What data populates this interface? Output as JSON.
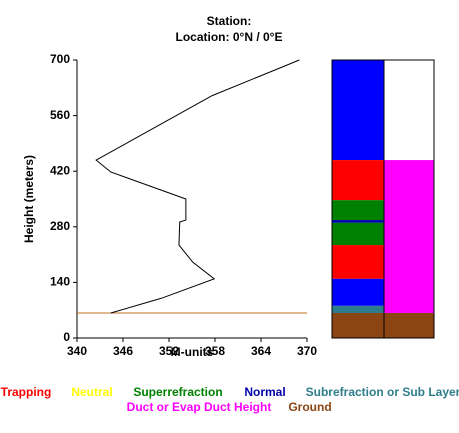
{
  "chart_data": {
    "type": "line",
    "title": "Station:",
    "subtitle": "Location:   0°N /   0°E",
    "xlabel": "M-units",
    "ylabel": "Height (meters)",
    "x": [
      369,
      357.6,
      342.5,
      344.4,
      354.2,
      354.2,
      353.4,
      353.3,
      355.1,
      357.9,
      351,
      344.4
    ],
    "y": [
      700,
      610,
      448,
      418,
      350,
      297,
      292,
      234,
      191,
      149,
      100,
      63
    ],
    "color": "#000000",
    "xlim": [
      340,
      370
    ],
    "xticks": [
      340,
      346,
      352,
      358,
      364,
      370
    ],
    "ylim": [
      0,
      700
    ],
    "yticks": [
      0,
      140,
      280,
      420,
      560,
      700
    ],
    "reference_line": {
      "value": 63,
      "color": "#c07020"
    },
    "layers": {
      "left": [
        {
          "from": 448,
          "to": 700,
          "color": "#0000ff"
        },
        {
          "from": 347,
          "to": 448,
          "color": "#ff0000"
        },
        {
          "from": 297,
          "to": 347,
          "color": "#008000"
        },
        {
          "from": 290,
          "to": 297,
          "color": "#0000aa"
        },
        {
          "from": 234,
          "to": 290,
          "color": "#008000"
        },
        {
          "from": 149,
          "to": 234,
          "color": "#ff0000"
        },
        {
          "from": 81,
          "to": 149,
          "color": "#0000ff"
        },
        {
          "from": 63,
          "to": 81,
          "color": "#2e7d8c"
        },
        {
          "from": 0,
          "to": 63,
          "color": "#8b4513"
        }
      ],
      "right": [
        {
          "from": 448,
          "to": 700,
          "color": "#ffffff"
        },
        {
          "from": 63,
          "to": 448,
          "color": "#ff00ff"
        },
        {
          "from": 0,
          "to": 63,
          "color": "#8b4513"
        }
      ]
    },
    "legend": [
      {
        "name": "Trapping",
        "color": "#ff0000"
      },
      {
        "name": "Neutral",
        "color": "#ffff00"
      },
      {
        "name": "Superrefraction",
        "color": "#008000"
      },
      {
        "name": "Normal",
        "color": "#0000aa"
      },
      {
        "name": "Subrefraction or Sub Layer",
        "color": "#2e7d8c"
      },
      {
        "name": "Duct or Evap Duct Height",
        "color": "#ff00ff"
      },
      {
        "name": "Ground",
        "color": "#8b4513"
      }
    ]
  }
}
